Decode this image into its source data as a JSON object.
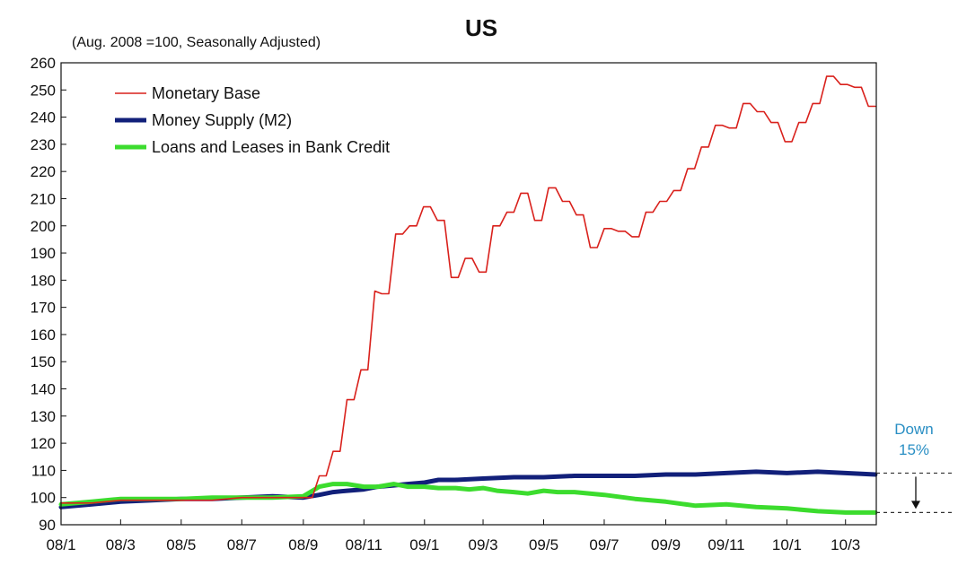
{
  "chart_data": {
    "type": "line",
    "title": "US",
    "subtitle": "(Aug. 2008 =100, Seasonally Adjusted)",
    "xlabel": "",
    "ylabel": "",
    "ylim": [
      90,
      260
    ],
    "yticks": [
      90,
      100,
      110,
      120,
      130,
      140,
      150,
      160,
      170,
      180,
      190,
      200,
      210,
      220,
      230,
      240,
      250,
      260
    ],
    "xrange": [
      "2008-01",
      "2010-04"
    ],
    "xticks": [
      "08/1",
      "08/3",
      "08/5",
      "08/7",
      "08/9",
      "08/11",
      "09/1",
      "09/3",
      "09/5",
      "09/7",
      "09/9",
      "09/11",
      "10/1",
      "10/3"
    ],
    "xtick_dates": [
      "2008-01",
      "2008-03",
      "2008-05",
      "2008-07",
      "2008-09",
      "2008-11",
      "2009-01",
      "2009-03",
      "2009-05",
      "2009-07",
      "2009-09",
      "2009-11",
      "2010-01",
      "2010-03"
    ],
    "grid": false,
    "legend_position": "top-left",
    "series": [
      {
        "name": "Monetary Base",
        "color": "#d9211c",
        "width": "thin",
        "x": [
          "2008-01-01",
          "2008-02-01",
          "2008-03-01",
          "2008-04-01",
          "2008-05-01",
          "2008-06-01",
          "2008-07-01",
          "2008-08-01",
          "2008-09-01",
          "2008-09-10",
          "2008-09-17",
          "2008-09-24",
          "2008-10-01",
          "2008-10-08",
          "2008-10-15",
          "2008-10-22",
          "2008-10-29",
          "2008-11-05",
          "2008-11-12",
          "2008-11-19",
          "2008-11-26",
          "2008-12-03",
          "2008-12-10",
          "2008-12-17",
          "2008-12-24",
          "2008-12-31",
          "2009-01-07",
          "2009-01-14",
          "2009-01-21",
          "2009-01-28",
          "2009-02-04",
          "2009-02-11",
          "2009-02-18",
          "2009-02-25",
          "2009-03-04",
          "2009-03-11",
          "2009-03-18",
          "2009-03-25",
          "2009-04-01",
          "2009-04-08",
          "2009-04-15",
          "2009-04-22",
          "2009-04-29",
          "2009-05-06",
          "2009-05-13",
          "2009-05-20",
          "2009-05-27",
          "2009-06-03",
          "2009-06-10",
          "2009-06-17",
          "2009-06-24",
          "2009-07-01",
          "2009-07-08",
          "2009-07-15",
          "2009-07-22",
          "2009-07-29",
          "2009-08-05",
          "2009-08-12",
          "2009-08-19",
          "2009-08-26",
          "2009-09-02",
          "2009-09-09",
          "2009-09-16",
          "2009-09-23",
          "2009-09-30",
          "2009-10-07",
          "2009-10-14",
          "2009-10-21",
          "2009-10-28",
          "2009-11-04",
          "2009-11-11",
          "2009-11-18",
          "2009-11-25",
          "2009-12-02",
          "2009-12-09",
          "2009-12-16",
          "2009-12-23",
          "2009-12-30",
          "2010-01-06",
          "2010-01-13",
          "2010-01-20",
          "2010-01-27",
          "2010-02-03",
          "2010-02-10",
          "2010-02-17",
          "2010-02-24",
          "2010-03-03",
          "2010-03-10",
          "2010-03-17",
          "2010-03-24",
          "2010-03-31"
        ],
        "values": [
          98,
          98,
          99,
          99,
          99,
          99,
          100,
          100,
          100,
          100,
          108,
          108,
          117,
          117,
          136,
          136,
          147,
          147,
          176,
          175,
          175,
          197,
          197,
          200,
          200,
          207,
          207,
          202,
          202,
          181,
          181,
          188,
          188,
          183,
          183,
          200,
          200,
          205,
          205,
          212,
          212,
          202,
          202,
          214,
          214,
          209,
          209,
          204,
          204,
          192,
          192,
          199,
          199,
          198,
          198,
          196,
          196,
          205,
          205,
          209,
          209,
          213,
          213,
          221,
          221,
          229,
          229,
          237,
          237,
          236,
          236,
          245,
          245,
          242,
          242,
          238,
          238,
          231,
          231,
          238,
          238,
          245,
          245,
          255,
          255,
          252,
          252,
          251,
          251,
          244,
          244
        ]
      },
      {
        "name": "Money Supply (M2)",
        "color": "#12207a",
        "width": "thick",
        "x": [
          "2008-01-01",
          "2008-02-01",
          "2008-03-01",
          "2008-04-01",
          "2008-05-01",
          "2008-06-01",
          "2008-07-01",
          "2008-08-01",
          "2008-09-01",
          "2008-09-17",
          "2008-10-01",
          "2008-10-15",
          "2008-11-01",
          "2008-11-15",
          "2008-12-01",
          "2008-12-15",
          "2009-01-01",
          "2009-01-15",
          "2009-02-01",
          "2009-03-01",
          "2009-04-01",
          "2009-05-01",
          "2009-06-01",
          "2009-07-01",
          "2009-08-01",
          "2009-09-01",
          "2009-10-01",
          "2009-11-01",
          "2009-12-01",
          "2010-01-01",
          "2010-02-01",
          "2010-03-01",
          "2010-03-31"
        ],
        "values": [
          96.5,
          97.5,
          98.5,
          99,
          99.5,
          99.5,
          100,
          100.5,
          100,
          101,
          102,
          102.5,
          103,
          104,
          104.5,
          105,
          105.5,
          106.5,
          106.5,
          107,
          107.5,
          107.5,
          108,
          108,
          108,
          108.5,
          108.5,
          109,
          109.5,
          109,
          109.5,
          109,
          108.5
        ]
      },
      {
        "name": "Loans and Leases in Bank Credit",
        "color": "#3cdc2e",
        "width": "thick",
        "x": [
          "2008-01-01",
          "2008-02-01",
          "2008-03-01",
          "2008-04-01",
          "2008-05-01",
          "2008-06-01",
          "2008-07-01",
          "2008-08-01",
          "2008-09-01",
          "2008-09-17",
          "2008-10-01",
          "2008-10-15",
          "2008-11-01",
          "2008-11-15",
          "2008-12-01",
          "2008-12-15",
          "2009-01-01",
          "2009-01-15",
          "2009-02-01",
          "2009-02-15",
          "2009-03-01",
          "2009-03-15",
          "2009-04-01",
          "2009-04-15",
          "2009-05-01",
          "2009-05-15",
          "2009-06-01",
          "2009-07-01",
          "2009-08-01",
          "2009-09-01",
          "2009-10-01",
          "2009-11-01",
          "2009-12-01",
          "2010-01-01",
          "2010-02-01",
          "2010-03-01",
          "2010-03-31"
        ],
        "values": [
          97.5,
          98.5,
          99.5,
          99.5,
          99.5,
          100,
          100,
          100,
          100.5,
          104,
          105,
          105,
          104,
          104,
          105,
          104,
          104,
          103.5,
          103.5,
          103,
          103.5,
          102.5,
          102,
          101.5,
          102.5,
          102,
          102,
          101,
          99.5,
          98.5,
          97,
          97.5,
          96.5,
          96,
          95,
          94.5,
          94.5
        ]
      }
    ],
    "annotations": [
      {
        "text_line1": "Down",
        "text_line2": "15%",
        "from": 109,
        "to": 94.5,
        "color": "#2a8fc4"
      }
    ]
  }
}
